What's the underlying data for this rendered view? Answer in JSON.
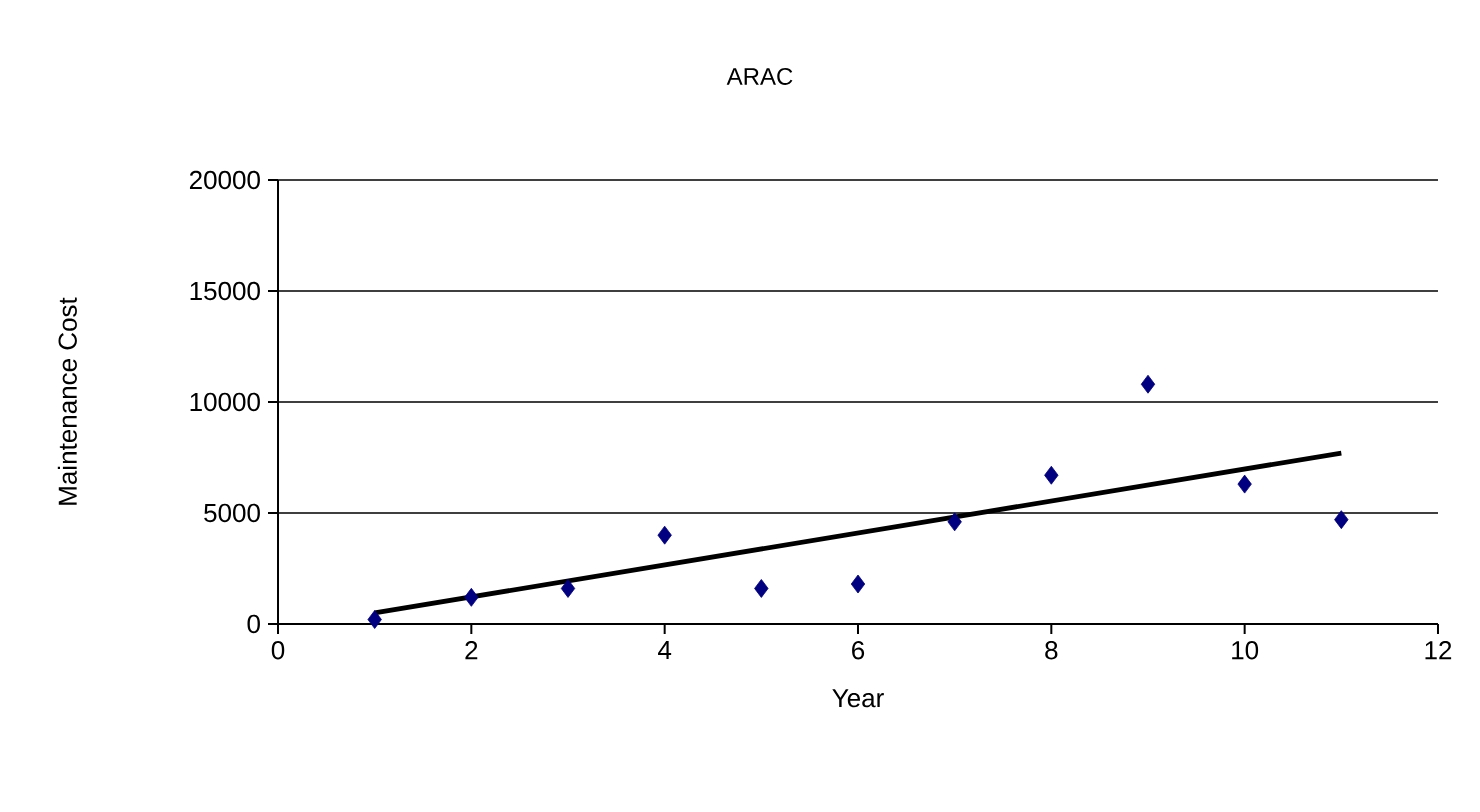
{
  "chart_data": {
    "type": "scatter",
    "title": "ARAC",
    "xlabel": "Year",
    "ylabel": "Maintenance Cost",
    "x": [
      1,
      2,
      3,
      4,
      5,
      6,
      7,
      8,
      9,
      10,
      11
    ],
    "series": [
      {
        "color": "#000080",
        "marker": "diamond",
        "values": [
          200,
          1200,
          1600,
          4000,
          1600,
          1800,
          4600,
          6700,
          10800,
          6300,
          4700
        ]
      },
      {
        "type": "line",
        "color": "#000000",
        "x": [
          1,
          11
        ],
        "values": [
          500,
          7700
        ]
      }
    ],
    "xlim": [
      0,
      12
    ],
    "ylim": [
      0,
      20000
    ],
    "xticks": [
      0,
      2,
      4,
      6,
      8,
      10,
      12
    ],
    "yticks": [
      0,
      5000,
      10000,
      15000,
      20000
    ],
    "grid": "y"
  }
}
